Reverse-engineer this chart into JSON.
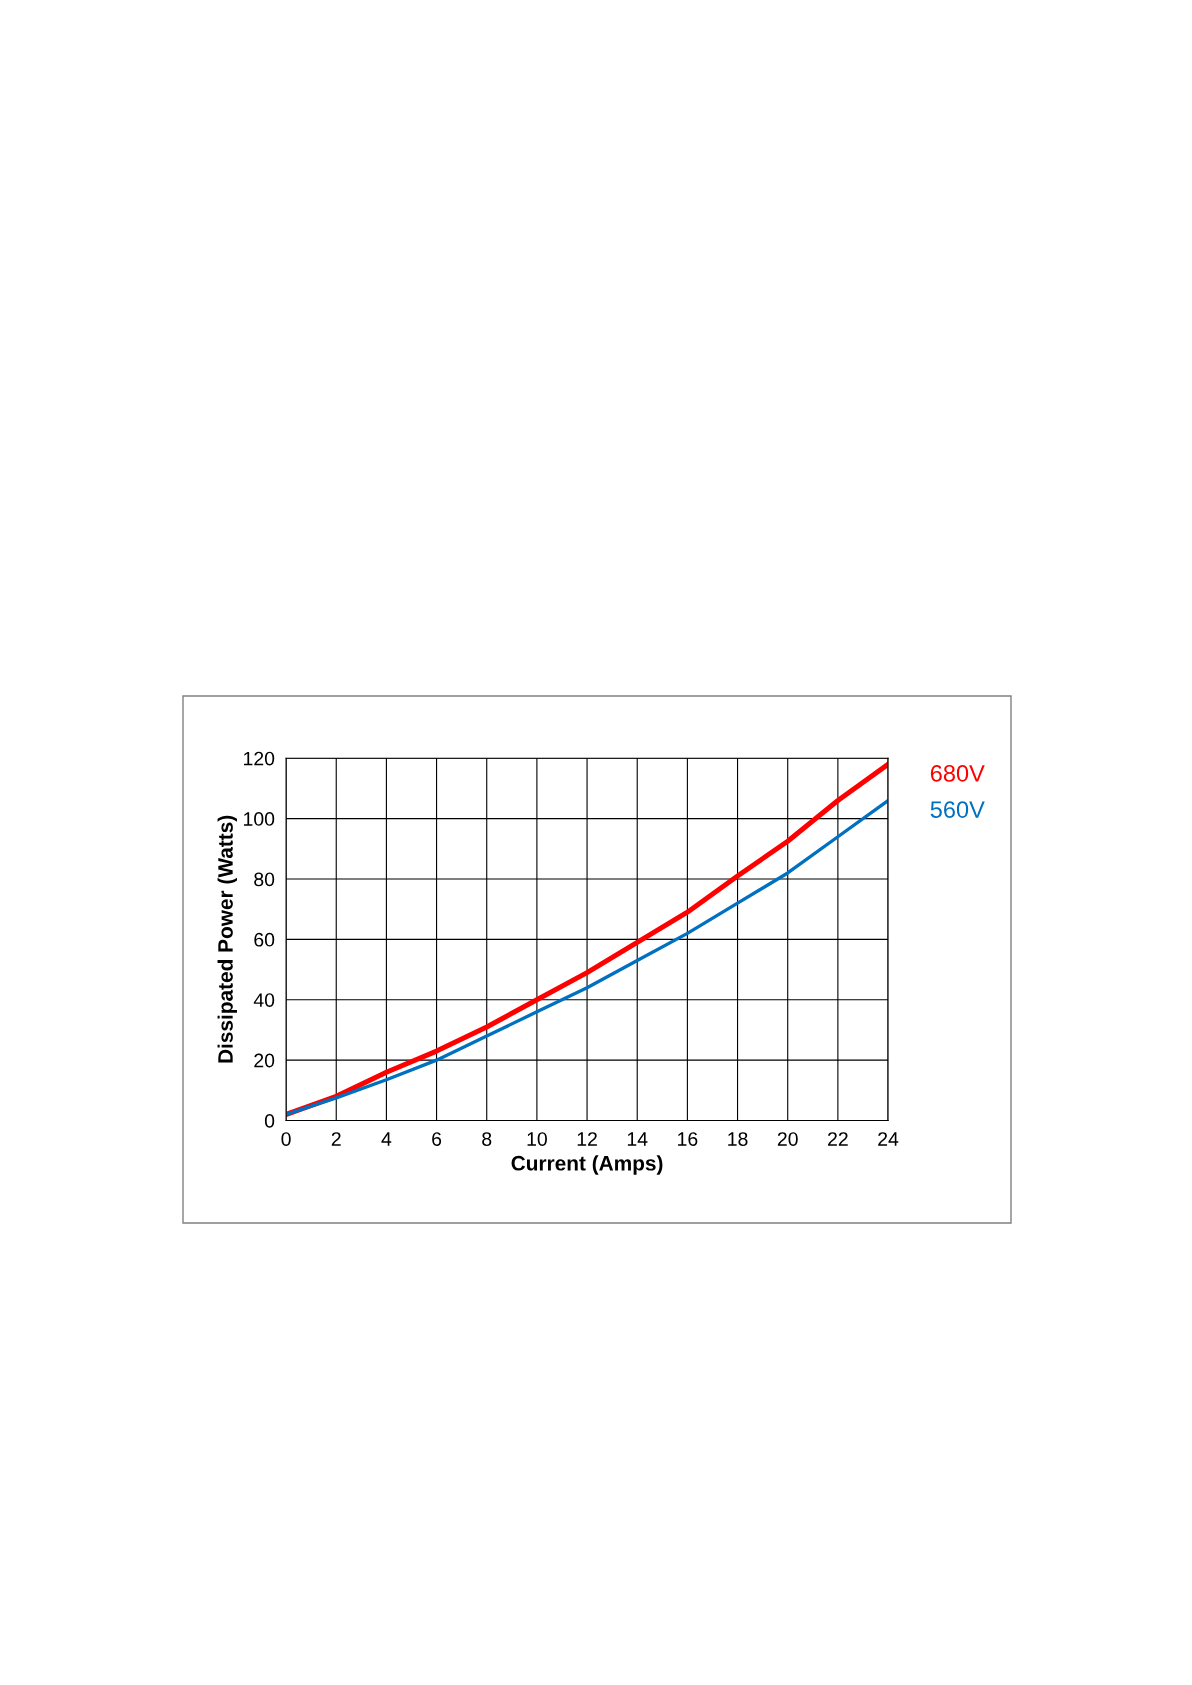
{
  "chart_data": {
    "type": "line",
    "xlabel": "Current (Amps)",
    "ylabel": "Dissipated Power (Watts)",
    "x": [
      0,
      2,
      4,
      6,
      8,
      10,
      12,
      14,
      16,
      18,
      20,
      22,
      24
    ],
    "series": [
      {
        "name": "680V",
        "color": "#ff0000",
        "values": [
          2,
          8,
          16,
          23,
          31,
          40,
          49,
          59,
          69,
          81,
          92.5,
          106,
          118
        ]
      },
      {
        "name": "560V",
        "color": "#0070c0",
        "values": [
          2,
          7.5,
          13.5,
          20,
          28,
          36,
          44,
          53,
          62,
          72,
          82,
          94,
          106
        ]
      }
    ],
    "xlim": [
      0,
      24
    ],
    "xticks": [
      0,
      2,
      4,
      6,
      8,
      10,
      12,
      14,
      16,
      18,
      20,
      22,
      24
    ],
    "ylim": [
      0,
      120
    ],
    "yticks": [
      0,
      20,
      40,
      60,
      80,
      100,
      120
    ],
    "grid": true,
    "legend": false,
    "marker": "none",
    "line_style": "solid"
  }
}
